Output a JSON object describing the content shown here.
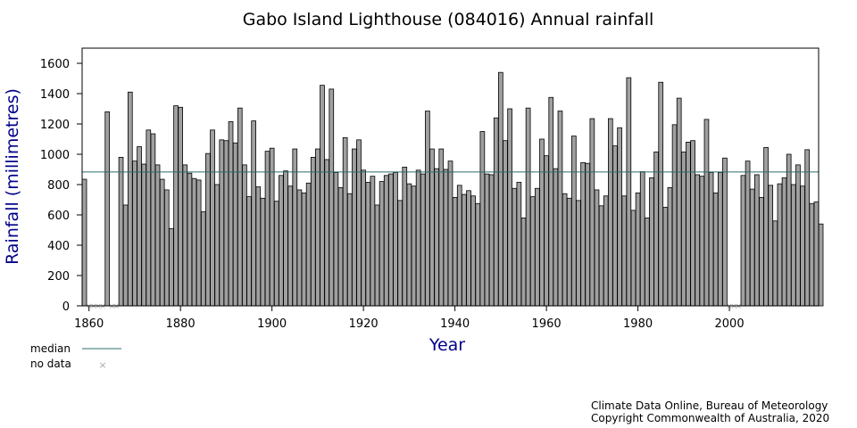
{
  "chart_data": {
    "type": "bar",
    "title": "Gabo Island Lighthouse (084016) Annual rainfall",
    "xlabel": "Year",
    "ylabel": "Rainfall (millimetres)",
    "xlim": [
      1858.5,
      2019.5
    ],
    "ylim": [
      0,
      1700
    ],
    "x_ticks": [
      1860,
      1880,
      1900,
      1920,
      1940,
      1960,
      1980,
      2000
    ],
    "y_ticks": [
      0,
      200,
      400,
      600,
      800,
      1000,
      1200,
      1400,
      1600
    ],
    "median": 883,
    "no_data_years": [
      1860,
      1861,
      1862,
      1863,
      1865,
      1866,
      2000,
      2001,
      2002
    ],
    "series": [
      {
        "name": "Annual rainfall",
        "color": "#a0a0a0",
        "start_year": 1859,
        "values": [
          835,
          null,
          null,
          null,
          null,
          1280,
          null,
          null,
          980,
          665,
          1410,
          955,
          1050,
          935,
          1160,
          1135,
          930,
          835,
          765,
          510,
          1320,
          1310,
          930,
          875,
          840,
          830,
          620,
          1005,
          1160,
          800,
          1095,
          1090,
          1215,
          1075,
          1305,
          930,
          720,
          1220,
          785,
          710,
          1020,
          1040,
          690,
          860,
          890,
          790,
          1035,
          765,
          745,
          810,
          980,
          1035,
          1455,
          965,
          1430,
          880,
          780,
          1110,
          740,
          1035,
          1095,
          895,
          815,
          855,
          665,
          820,
          860,
          870,
          880,
          695,
          915,
          805,
          790,
          895,
          870,
          1285,
          1035,
          905,
          1035,
          900,
          955,
          715,
          795,
          735,
          760,
          725,
          675,
          1150,
          870,
          865,
          1240,
          1540,
          1090,
          1300,
          775,
          815,
          580,
          1305,
          720,
          775,
          1100,
          990,
          1375,
          905,
          1285,
          740,
          710,
          1120,
          695,
          945,
          940,
          1235,
          765,
          660,
          725,
          1235,
          1055,
          1175,
          725,
          1505,
          630,
          745,
          885,
          580,
          845,
          1015,
          1475,
          650,
          780,
          1195,
          1370,
          1015,
          1080,
          1090,
          865,
          855,
          1230,
          880,
          745,
          880,
          975,
          null,
          null,
          null,
          860,
          955,
          770,
          865,
          715,
          1045,
          795,
          560,
          805,
          845,
          1000,
          800,
          930,
          790,
          1030,
          675,
          685,
          540
        ]
      }
    ],
    "legend": [
      "median",
      "no data"
    ],
    "source": [
      "Climate Data Online, Bureau of Meteorology",
      "Copyright Commonwealth of Australia, 2020"
    ],
    "colors": {
      "bar_fill": "#a0a0a0",
      "bar_stroke": "#000000",
      "median_line": "#2a6b6b",
      "axis_title": "#00008b",
      "no_data_marker": "#a8a8a8"
    }
  }
}
